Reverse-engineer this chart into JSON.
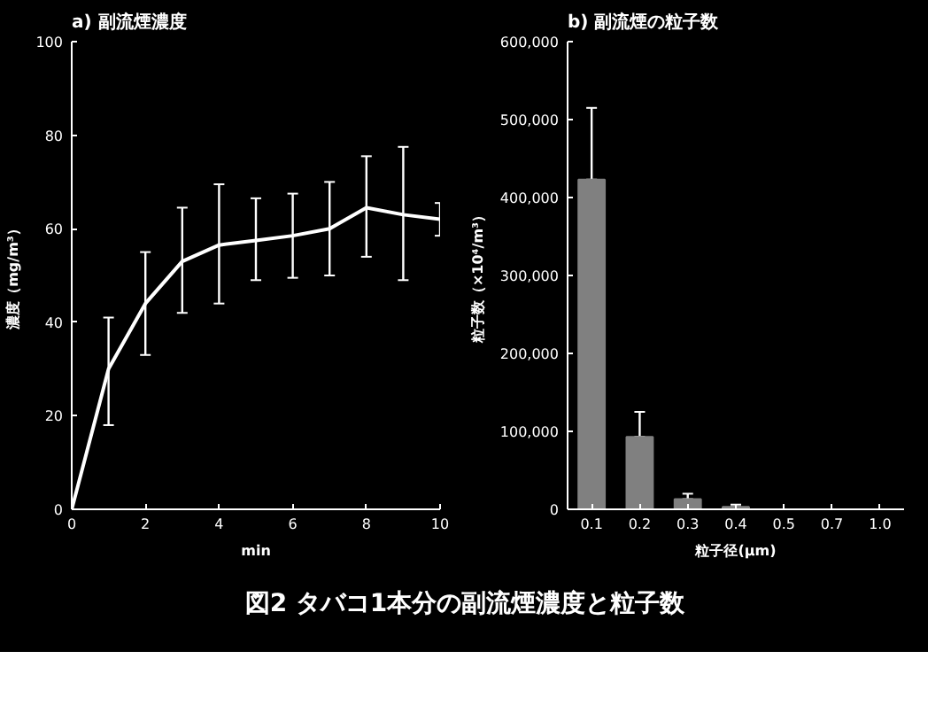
{
  "chart_data": [
    {
      "type": "line",
      "title": "a) 副流煙濃度",
      "xlabel": "min",
      "ylabel": "濃度（mg/m³）",
      "x": [
        0,
        1,
        2,
        3,
        4,
        5,
        6,
        7,
        8,
        9,
        10
      ],
      "series": [
        {
          "color": "#ffffff",
          "values": [
            0,
            30,
            44,
            53,
            56.5,
            57.5,
            58.5,
            60,
            64.5,
            63,
            62
          ],
          "errors": [
            null,
            [
              18,
              41
            ],
            [
              33,
              55
            ],
            [
              42,
              64.5
            ],
            [
              44,
              69.5
            ],
            [
              49,
              66.5
            ],
            [
              49.5,
              67.5
            ],
            [
              50,
              70
            ],
            [
              54,
              75.5
            ],
            [
              49,
              77.5
            ],
            [
              58.5,
              65.5
            ]
          ]
        }
      ],
      "xlim": [
        0,
        10
      ],
      "xticks": [
        0,
        2,
        4,
        6,
        8,
        10
      ],
      "ylim": [
        0,
        100
      ],
      "yticks": [
        0,
        20,
        40,
        60,
        80,
        100
      ],
      "grid": false,
      "marker": "none",
      "line_style": "solid",
      "annotations": [
        "図2 タバコ1本分の副流煙濃度と粒子数"
      ]
    },
    {
      "type": "bar",
      "title": "b) 副流煙の粒子数",
      "xlabel": "粒子径(μm)",
      "ylabel": "粒子数（×10⁴/m³）",
      "categories": [
        "0.1",
        "0.2",
        "0.3",
        "0.4",
        "0.5",
        "0.7",
        "1.0"
      ],
      "series": [
        {
          "color": "#808080",
          "values": [
            423000,
            93000,
            13000,
            3000,
            0,
            0,
            0
          ],
          "errors": [
            [
              423000,
              515000
            ],
            [
              93000,
              125000
            ],
            [
              13000,
              20000
            ],
            [
              3000,
              6000
            ],
            null,
            null,
            null
          ]
        }
      ],
      "ylim": [
        0,
        600000
      ],
      "yticks": [
        0,
        {
          "value": 100000,
          "label": "100,000"
        },
        {
          "value": 200000,
          "label": "200,000"
        },
        {
          "value": 300000,
          "label": "300,000"
        },
        {
          "value": 400000,
          "label": "400,000"
        },
        {
          "value": 500000,
          "label": "500,000"
        },
        {
          "value": 600000,
          "label": "600,000"
        }
      ],
      "grid": false
    }
  ]
}
